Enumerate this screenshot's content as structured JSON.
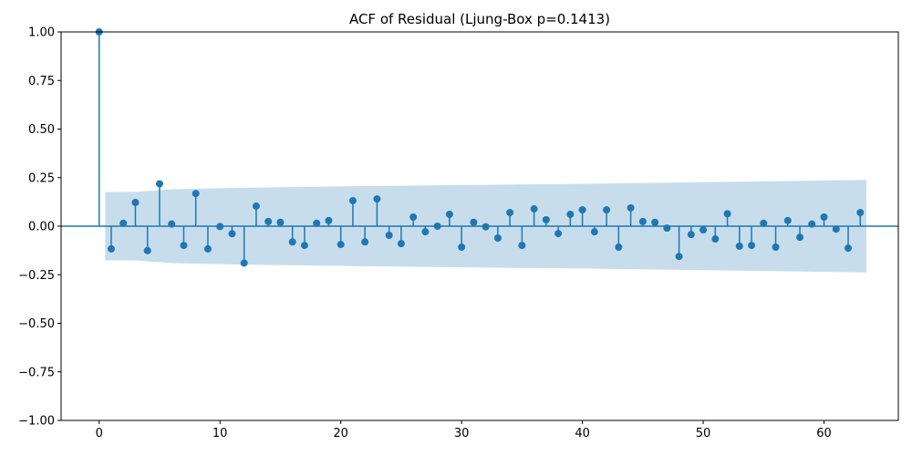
{
  "chart_data": {
    "type": "stem",
    "title": "ACF of Residual (Ljung-Box p=0.1413)",
    "xlabel": "",
    "ylabel": "",
    "xlim": [
      -3.15,
      66.15
    ],
    "ylim": [
      -1.0,
      1.0
    ],
    "x_ticks": [
      0,
      10,
      20,
      30,
      40,
      50,
      60
    ],
    "y_ticks": [
      -1.0,
      -0.75,
      -0.5,
      -0.25,
      0.0,
      0.25,
      0.5,
      0.75,
      1.0
    ],
    "x_tick_labels": [
      "0",
      "10",
      "20",
      "30",
      "40",
      "50",
      "60"
    ],
    "y_tick_labels": [
      "−1.00",
      "−0.75",
      "−0.50",
      "−0.25",
      "0.00",
      "0.25",
      "0.50",
      "0.75",
      "1.00"
    ],
    "grid": false,
    "legend": "none",
    "colors": {
      "stem": "#1f77b4",
      "confidence_band": "#1f77b4",
      "confidence_band_opacity": 0.25
    },
    "lags": [
      0,
      1,
      2,
      3,
      4,
      5,
      6,
      7,
      8,
      9,
      10,
      11,
      12,
      13,
      14,
      15,
      16,
      17,
      18,
      19,
      20,
      21,
      22,
      23,
      24,
      25,
      26,
      27,
      28,
      29,
      30,
      31,
      32,
      33,
      34,
      35,
      36,
      37,
      38,
      39,
      40,
      41,
      42,
      43,
      44,
      45,
      46,
      47,
      48,
      49,
      50,
      51,
      52,
      53,
      54,
      55,
      56,
      57,
      58,
      59,
      60,
      61,
      62,
      63
    ],
    "values": [
      1.0,
      -0.117,
      0.015,
      0.122,
      -0.126,
      0.218,
      0.011,
      -0.099,
      0.168,
      -0.117,
      -0.002,
      -0.039,
      -0.19,
      0.103,
      0.024,
      0.02,
      -0.081,
      -0.099,
      0.015,
      0.029,
      -0.094,
      0.131,
      -0.081,
      0.14,
      -0.047,
      -0.09,
      0.047,
      -0.029,
      0.0,
      0.061,
      -0.108,
      0.02,
      -0.003,
      -0.061,
      0.07,
      -0.099,
      0.089,
      0.033,
      -0.038,
      0.061,
      0.084,
      -0.029,
      0.084,
      -0.108,
      0.094,
      0.024,
      0.02,
      -0.01,
      -0.156,
      -0.043,
      -0.019,
      -0.066,
      0.064,
      -0.103,
      -0.099,
      0.015,
      -0.108,
      0.029,
      -0.057,
      0.011,
      0.047,
      -0.015,
      -0.113,
      0.07
    ],
    "confidence_band": {
      "x": [
        0.5,
        3,
        6,
        12,
        20,
        40,
        63.5
      ],
      "upper": [
        0.176,
        0.176,
        0.19,
        0.198,
        0.205,
        0.218,
        0.238
      ],
      "lower": [
        -0.176,
        -0.176,
        -0.19,
        -0.198,
        -0.205,
        -0.218,
        -0.238
      ]
    }
  }
}
